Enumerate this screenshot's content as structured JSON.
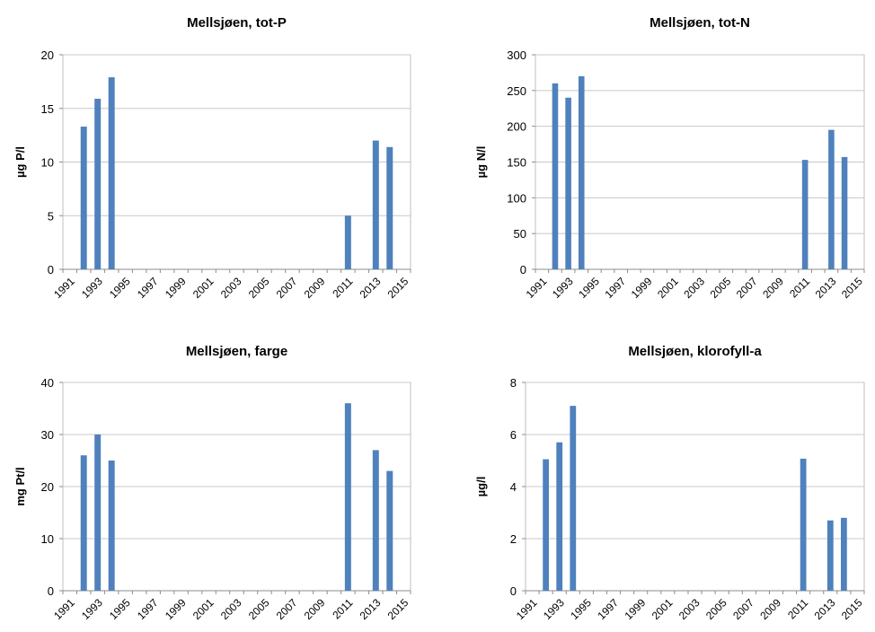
{
  "chart_data": [
    {
      "type": "bar",
      "title": "Mellsjøen, tot-P",
      "ylabel": "µg P/l",
      "ylim": [
        0,
        20
      ],
      "yticks": [
        0,
        5,
        10,
        15,
        20
      ],
      "grid": true,
      "categories": [
        "1991",
        "1992",
        "1993",
        "1994",
        "1995",
        "1996",
        "1997",
        "1998",
        "1999",
        "2000",
        "2001",
        "2002",
        "2003",
        "2004",
        "2005",
        "2006",
        "2007",
        "2008",
        "2009",
        "2010",
        "2011",
        "2012",
        "2013",
        "2014",
        "2015"
      ],
      "x_tick_labels": [
        "1991",
        "1993",
        "1995",
        "1997",
        "1999",
        "2001",
        "2003",
        "2005",
        "2007",
        "2009",
        "2011",
        "2013",
        "2015"
      ],
      "values": [
        null,
        13.3,
        15.9,
        17.9,
        null,
        null,
        null,
        null,
        null,
        null,
        null,
        null,
        null,
        null,
        null,
        null,
        null,
        null,
        null,
        null,
        5.0,
        null,
        12.0,
        11.4,
        null
      ],
      "color": "#4f81bd"
    },
    {
      "type": "bar",
      "title": "Mellsjøen, tot-N",
      "ylabel": "µg N/l",
      "ylim": [
        0,
        300
      ],
      "yticks": [
        0,
        50,
        100,
        150,
        200,
        250,
        300
      ],
      "grid": true,
      "categories": [
        "1991",
        "1992",
        "1993",
        "1994",
        "1995",
        "1996",
        "1997",
        "1998",
        "1999",
        "2000",
        "2001",
        "2002",
        "2003",
        "2004",
        "2005",
        "2006",
        "2007",
        "2008",
        "2009",
        "2010",
        "2011",
        "2012",
        "2013",
        "2014",
        "2015"
      ],
      "x_tick_labels": [
        "1991",
        "1993",
        "1995",
        "1997",
        "1999",
        "2001",
        "2003",
        "2005",
        "2007",
        "2009",
        "2011",
        "2013",
        "2015"
      ],
      "values": [
        null,
        260,
        240,
        270,
        null,
        null,
        null,
        null,
        null,
        null,
        null,
        null,
        null,
        null,
        null,
        null,
        null,
        null,
        null,
        null,
        153,
        null,
        195,
        157,
        null
      ],
      "color": "#4f81bd"
    },
    {
      "type": "bar",
      "title": "Mellsjøen, farge",
      "ylabel": "mg Pt/l",
      "ylim": [
        0,
        40
      ],
      "yticks": [
        0,
        10,
        20,
        30,
        40
      ],
      "grid": true,
      "categories": [
        "1991",
        "1992",
        "1993",
        "1994",
        "1995",
        "1996",
        "1997",
        "1998",
        "1999",
        "2000",
        "2001",
        "2002",
        "2003",
        "2004",
        "2005",
        "2006",
        "2007",
        "2008",
        "2009",
        "2010",
        "2011",
        "2012",
        "2013",
        "2014",
        "2015"
      ],
      "x_tick_labels": [
        "1991",
        "1993",
        "1995",
        "1997",
        "1999",
        "2001",
        "2003",
        "2005",
        "2007",
        "2009",
        "2011",
        "2013",
        "2015"
      ],
      "values": [
        null,
        26,
        30,
        25,
        null,
        null,
        null,
        null,
        null,
        null,
        null,
        null,
        null,
        null,
        null,
        null,
        null,
        null,
        null,
        null,
        36,
        null,
        27,
        23,
        null
      ],
      "color": "#4f81bd"
    },
    {
      "type": "bar",
      "title": "Mellsjøen, klorofyll-a",
      "ylabel": "µg/l",
      "ylim": [
        0,
        8
      ],
      "yticks": [
        0,
        2,
        4,
        6,
        8
      ],
      "grid": true,
      "categories": [
        "1991",
        "1992",
        "1993",
        "1994",
        "1995",
        "1996",
        "1997",
        "1998",
        "1999",
        "2000",
        "2001",
        "2002",
        "2003",
        "2004",
        "2005",
        "2006",
        "2007",
        "2008",
        "2009",
        "2010",
        "2011",
        "2012",
        "2013",
        "2014",
        "2015"
      ],
      "x_tick_labels": [
        "1991",
        "1993",
        "1995",
        "1997",
        "1999",
        "2001",
        "2003",
        "2005",
        "2007",
        "2009",
        "2011",
        "2013",
        "2015"
      ],
      "values": [
        null,
        5.05,
        5.7,
        7.1,
        null,
        null,
        null,
        null,
        null,
        null,
        null,
        null,
        null,
        null,
        null,
        null,
        null,
        null,
        null,
        null,
        5.07,
        null,
        2.7,
        2.8,
        null
      ],
      "color": "#4f81bd"
    }
  ]
}
